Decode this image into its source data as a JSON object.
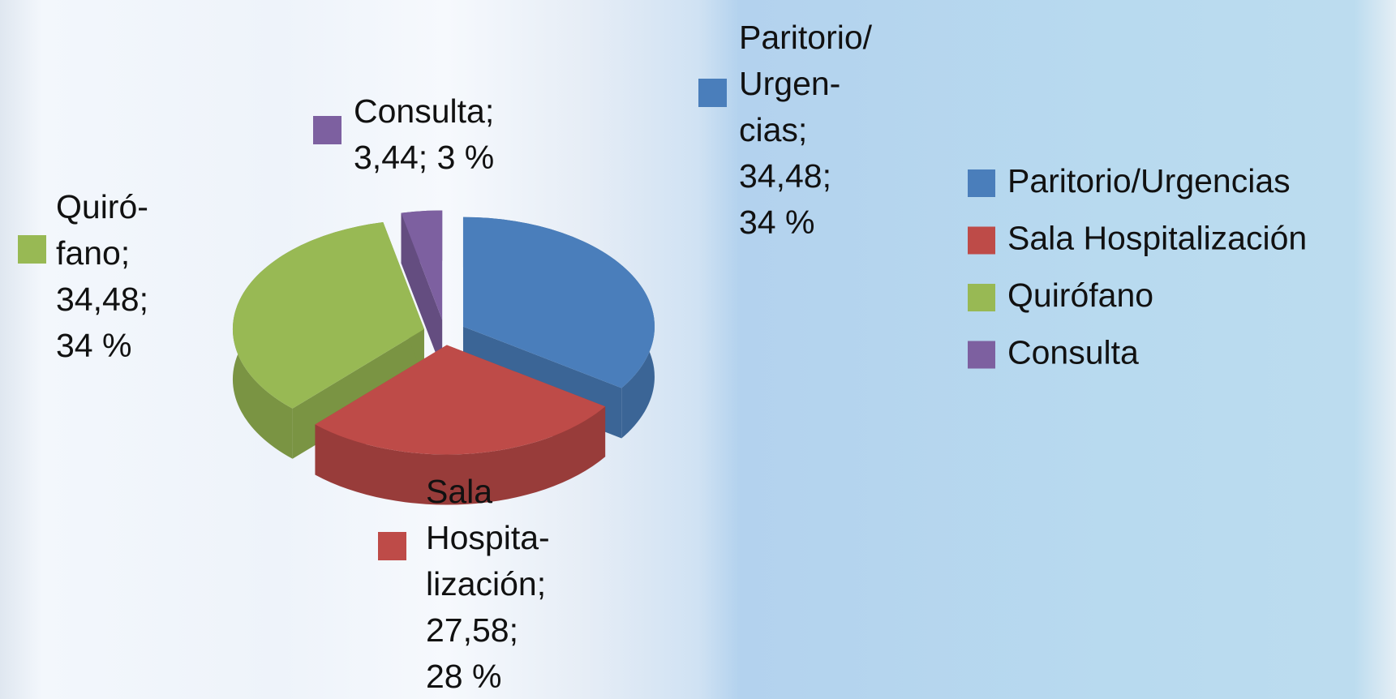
{
  "chart_data": {
    "type": "pie",
    "categories": [
      "Paritorio/Urgencias",
      "Sala Hospitalización",
      "Quirófano",
      "Consulta"
    ],
    "values": [
      34.48,
      27.58,
      34.48,
      3.44
    ],
    "value_labels": [
      "Paritorio/\nUrgen-\ncias;\n34,48;\n34 %",
      "Sala\nHospita-\nlización;\n27,58;\n28 %",
      "Quiró-\nfano;\n34,48;\n34 %",
      "Consulta;\n3,44; 3 %"
    ],
    "colors": [
      "#4a7ebb",
      "#be4b48",
      "#98b954",
      "#7d60a0"
    ],
    "legend": "right"
  }
}
